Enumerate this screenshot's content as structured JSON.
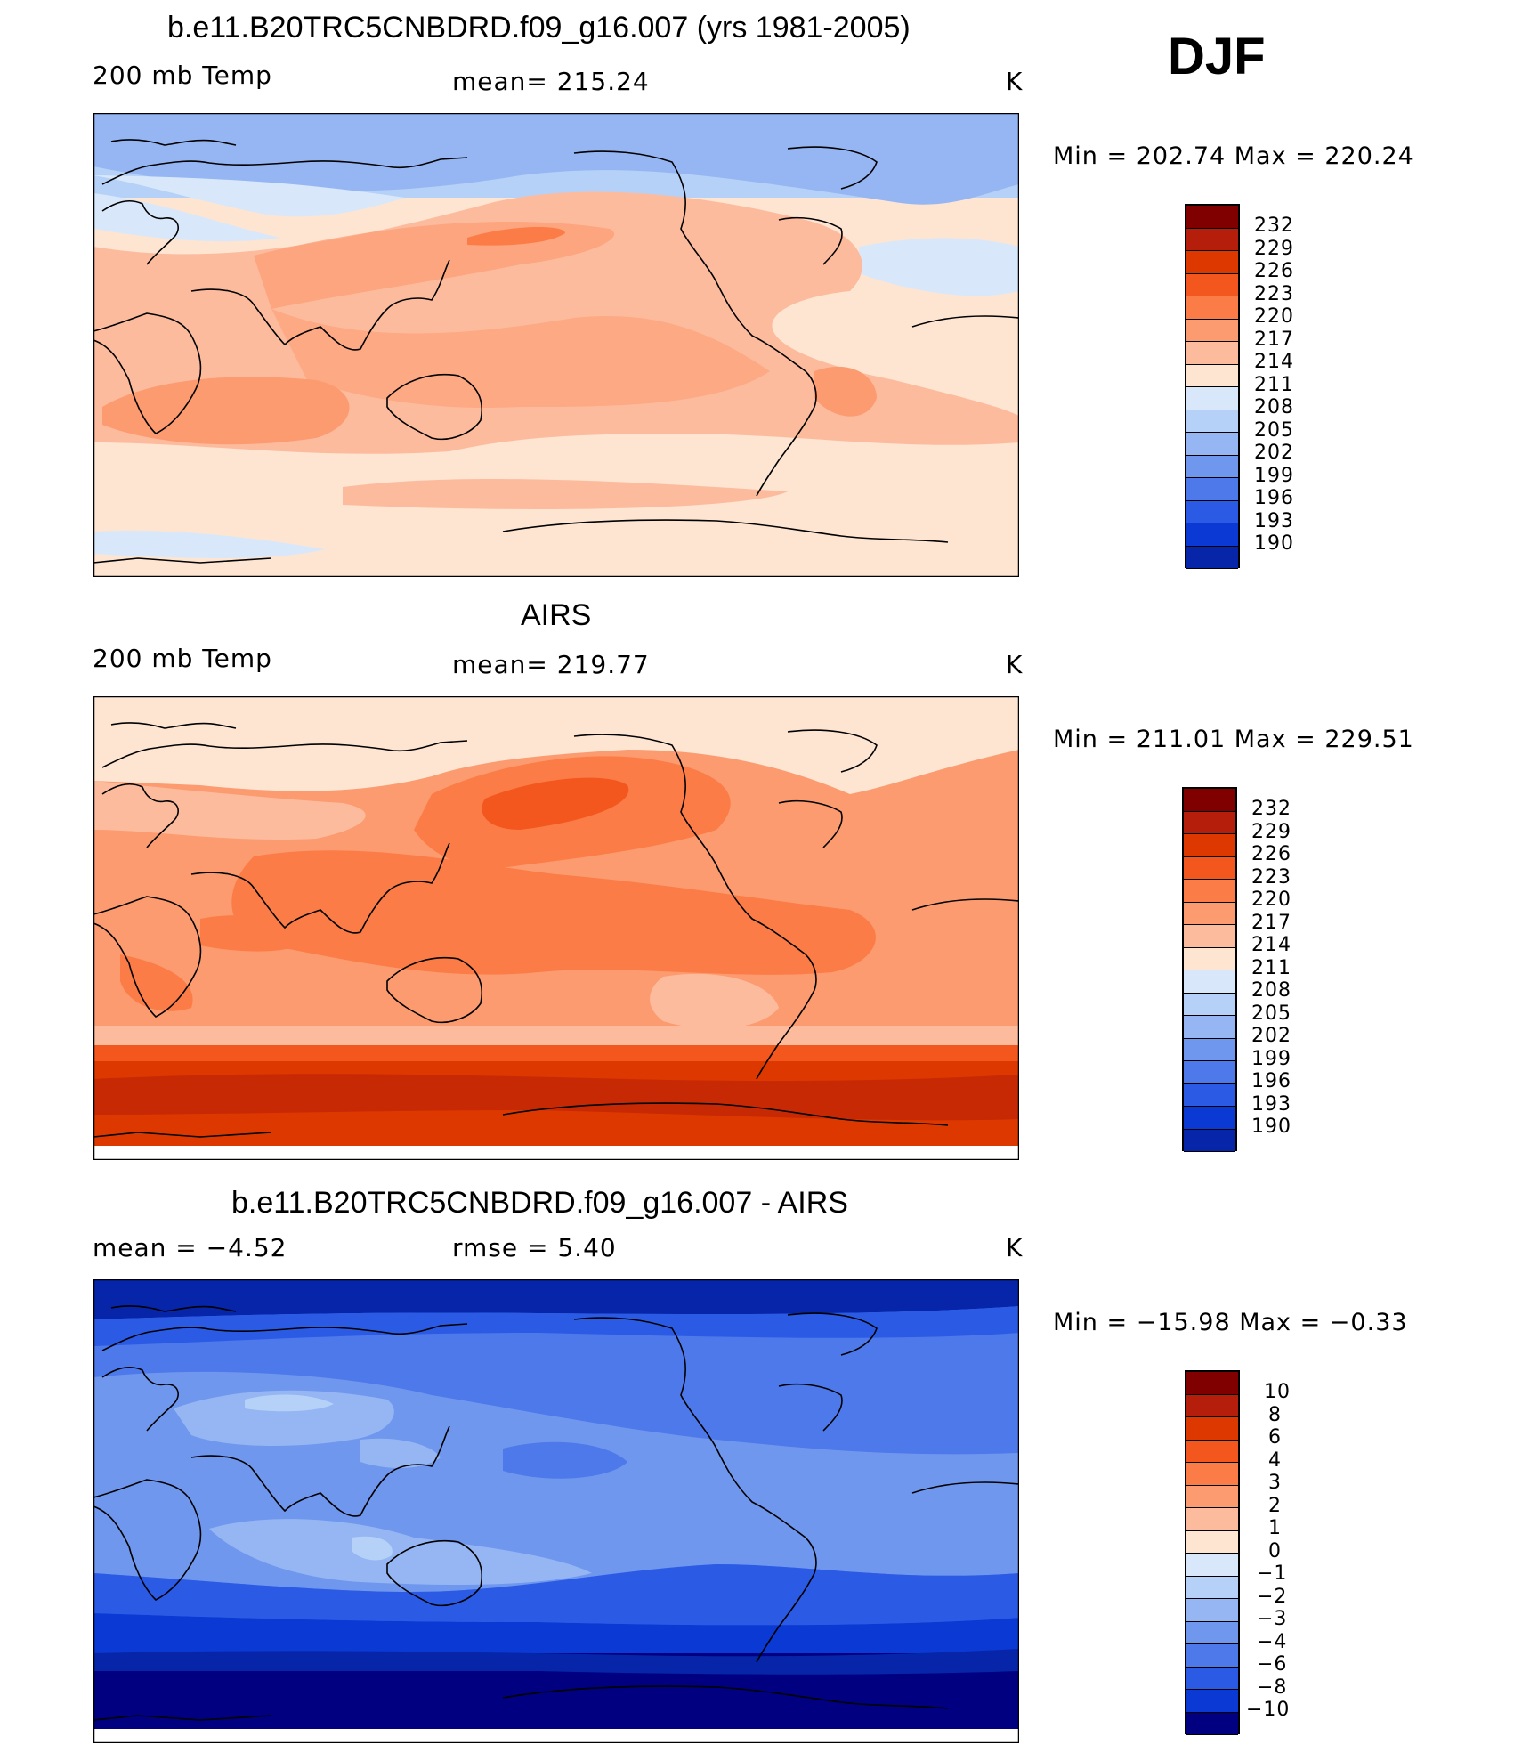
{
  "season": "DJF",
  "colors": {
    "warm": [
      "#800000",
      "#b51e0a",
      "#dd3800",
      "#f3571e",
      "#fb7c46",
      "#fc9b70",
      "#fdbb9e",
      "#fde5d2"
    ],
    "cool": [
      "#d8e8fa",
      "#b6d1f8",
      "#95b6f3",
      "#7097ee",
      "#4d79ea",
      "#2b5be5",
      "#0a39d4",
      "#0625a8",
      "#000080"
    ],
    "land_outline": "#000000"
  },
  "panels": [
    {
      "title": "b.e11.B20TRC5CNBDRD.f09_g16.007 (yrs 1981-2005)",
      "left_label": "200 mb Temp",
      "center_label": "mean=  215.24",
      "units": "K",
      "minmax": "Min  =  202.74  Max  =  220.24",
      "colorbar_labels": [
        "232",
        "229",
        "226",
        "223",
        "220",
        "217",
        "214",
        "211",
        "208",
        "205",
        "202",
        "199",
        "196",
        "193",
        "190"
      ]
    },
    {
      "title": "AIRS",
      "left_label": "200 mb Temp",
      "center_label": "mean=  219.77",
      "units": "K",
      "minmax": "Min  =  211.01  Max  =  229.51",
      "colorbar_labels": [
        "232",
        "229",
        "226",
        "223",
        "220",
        "217",
        "214",
        "211",
        "208",
        "205",
        "202",
        "199",
        "196",
        "193",
        "190"
      ]
    },
    {
      "title": "b.e11.B20TRC5CNBDRD.f09_g16.007 - AIRS",
      "left_label": "mean  =    −4.52",
      "center_label": "rmse  =     5.40",
      "units": "K",
      "minmax": "Min  =  −15.98  Max  =    −0.33",
      "colorbar_labels": [
        "10",
        "8",
        "6",
        "4",
        "3",
        "2",
        "1",
        "0",
        "−1",
        "−2",
        "−3",
        "−4",
        "−6",
        "−8",
        "−10"
      ]
    }
  ]
}
